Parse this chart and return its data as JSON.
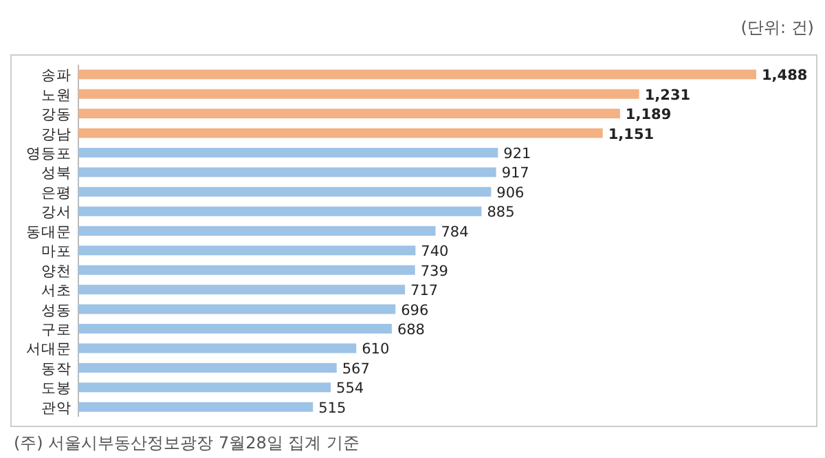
{
  "chart_data": {
    "type": "bar",
    "orientation": "horizontal",
    "categories": [
      "송파",
      "노원",
      "강동",
      "강남",
      "영등포",
      "성북",
      "은평",
      "강서",
      "동대문",
      "마포",
      "양천",
      "서초",
      "성동",
      "구로",
      "서대문",
      "동작",
      "도봉",
      "관악"
    ],
    "values": [
      1488,
      1231,
      1189,
      1151,
      921,
      917,
      906,
      885,
      784,
      740,
      739,
      717,
      696,
      688,
      610,
      567,
      554,
      515
    ],
    "value_labels": [
      "1,488",
      "1,231",
      "1,189",
      "1,151",
      "921",
      "917",
      "906",
      "885",
      "784",
      "740",
      "739",
      "717",
      "696",
      "688",
      "610",
      "567",
      "554",
      "515"
    ],
    "colors": [
      "#f4b183",
      "#f4b183",
      "#f4b183",
      "#f4b183",
      "#9dc3e6",
      "#9dc3e6",
      "#9dc3e6",
      "#9dc3e6",
      "#9dc3e6",
      "#9dc3e6",
      "#9dc3e6",
      "#9dc3e6",
      "#9dc3e6",
      "#9dc3e6",
      "#9dc3e6",
      "#9dc3e6",
      "#9dc3e6",
      "#9dc3e6"
    ],
    "annotations": [
      "(단위: 건)",
      "(주) 서울시부동산정보광장 7월28일 집계 기준"
    ]
  }
}
